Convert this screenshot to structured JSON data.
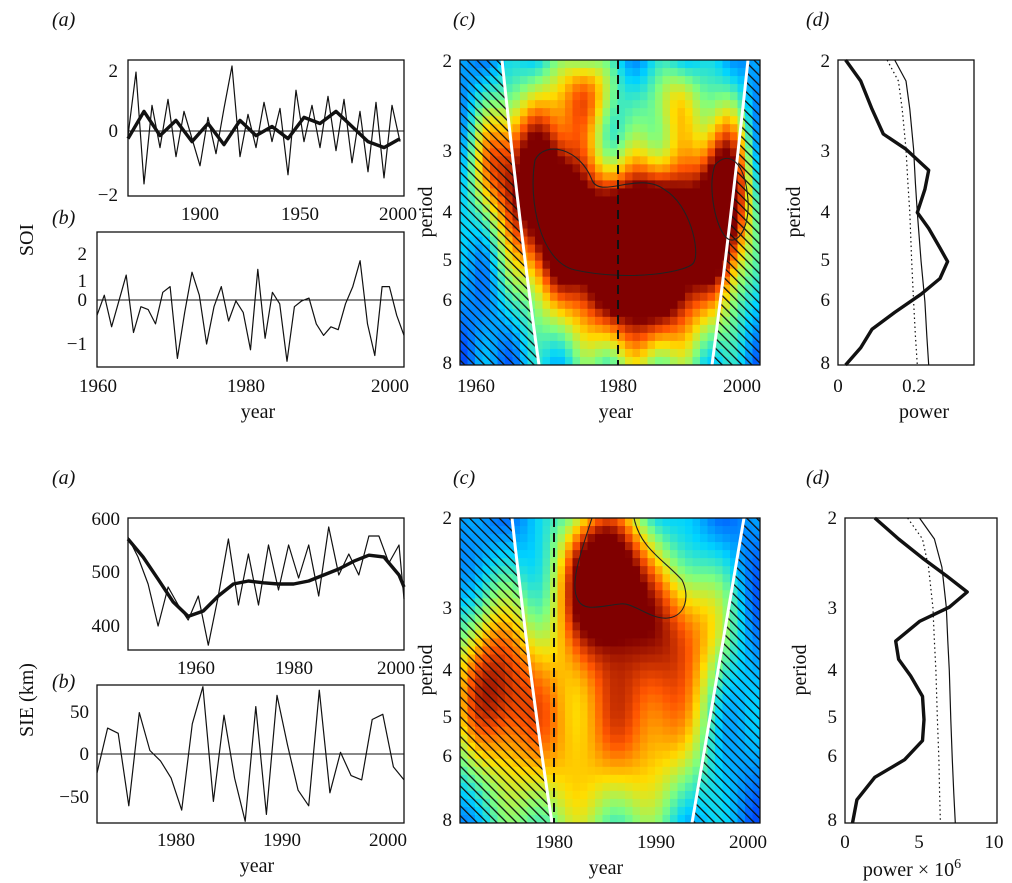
{
  "figure": {
    "top": {
      "row_label": "SOI",
      "a": {
        "panel": "(a)",
        "xticks": [
          "1900",
          "1950",
          "2000"
        ],
        "yticks": [
          "2",
          "0",
          "−2"
        ],
        "xlim": [
          1866,
          2004
        ],
        "ylim": [
          -2.2,
          2.3
        ]
      },
      "b": {
        "panel": "(b)",
        "xticks": [
          "1960",
          "1980",
          "2000"
        ],
        "yticks": [
          "2",
          "1",
          "0",
          "−1"
        ],
        "xlabel": "year",
        "xlim": [
          1960,
          2002
        ],
        "ylim": [
          -1.7,
          3.0
        ]
      },
      "c": {
        "panel": "(c)",
        "xticks": [
          "1960",
          "1980",
          "2000"
        ],
        "yticks": [
          "2",
          "3",
          "4",
          "5",
          "6",
          "8"
        ],
        "xlabel": "year",
        "ylabel": "period",
        "dashed_year": 1980
      },
      "d": {
        "panel": "(d)",
        "xticks": [
          "0",
          "0.2"
        ],
        "yticks": [
          "2",
          "3",
          "4",
          "5",
          "6",
          "8"
        ],
        "xlabel": "power",
        "ylabel": "period"
      }
    },
    "bottom": {
      "row_label": "SIE (km)",
      "a": {
        "panel": "(a)",
        "xticks": [
          "1960",
          "1980",
          "2000"
        ],
        "yticks": [
          "600",
          "500",
          "400"
        ],
        "xlim": [
          1947,
          2002
        ],
        "ylim": [
          380,
          600
        ]
      },
      "b": {
        "panel": "(b)",
        "xticks": [
          "1980",
          "1990",
          "2000"
        ],
        "yticks": [
          "50",
          "0",
          "−50"
        ],
        "xlabel": "year",
        "xlim": [
          1973,
          2002
        ],
        "ylim": [
          -80,
          80
        ]
      },
      "c": {
        "panel": "(c)",
        "xticks": [
          "1980",
          "1990",
          "2000"
        ],
        "yticks": [
          "2",
          "3",
          "4",
          "5",
          "6",
          "8"
        ],
        "xlabel": "year",
        "ylabel": "period",
        "dashed_year": 1980
      },
      "d": {
        "panel": "(d)",
        "xticks": [
          "0",
          "5",
          "10"
        ],
        "yticks": [
          "2",
          "3",
          "4",
          "5",
          "6",
          "8"
        ],
        "xlabel": "power × 10",
        "xlabel_sup": "6",
        "ylabel": "period"
      }
    }
  },
  "chart_data": [
    {
      "id": "top-a",
      "type": "line",
      "x_range": [
        1866,
        2004
      ],
      "y_range": [
        -2.2,
        2.3
      ],
      "series": [
        {
          "style": "thin",
          "x": [
            1866,
            1870,
            1874,
            1878,
            1882,
            1886,
            1890,
            1894,
            1898,
            1902,
            1906,
            1910,
            1914,
            1918,
            1922,
            1926,
            1930,
            1934,
            1938,
            1942,
            1946,
            1950,
            1954,
            1958,
            1962,
            1966,
            1970,
            1974,
            1978,
            1982,
            1986,
            1990,
            1994,
            1998,
            2002
          ],
          "y": [
            -0.2,
            1.9,
            -1.8,
            0.8,
            -0.6,
            1.0,
            -0.9,
            0.6,
            -0.3,
            -1.2,
            0.4,
            -0.8,
            0.7,
            2.1,
            -0.9,
            0.5,
            -0.6,
            0.9,
            -0.4,
            0.7,
            -1.5,
            1.3,
            -0.4,
            0.8,
            -0.6,
            1.1,
            -0.7,
            1.0,
            -1.1,
            0.6,
            -1.4,
            0.9,
            -1.6,
            0.8,
            -0.4
          ]
        },
        {
          "style": "thick",
          "x": [
            1866,
            1874,
            1882,
            1890,
            1898,
            1906,
            1914,
            1922,
            1930,
            1938,
            1946,
            1954,
            1962,
            1970,
            1978,
            1986,
            1994,
            2002
          ],
          "y": [
            -0.3,
            0.6,
            -0.2,
            0.3,
            -0.4,
            0.2,
            -0.5,
            0.3,
            -0.2,
            0.1,
            -0.3,
            0.4,
            0.2,
            0.6,
            0.1,
            -0.4,
            -0.6,
            -0.3
          ]
        }
      ]
    },
    {
      "id": "top-b",
      "type": "line",
      "x_range": [
        1960,
        2002
      ],
      "y_range": [
        -1.7,
        3.0
      ],
      "series": [
        {
          "style": "thin",
          "x": [
            1960,
            1961,
            1962,
            1963,
            1964,
            1965,
            1966,
            1967,
            1968,
            1969,
            1970,
            1971,
            1972,
            1973,
            1974,
            1975,
            1976,
            1977,
            1978,
            1979,
            1980,
            1981,
            1982,
            1983,
            1984,
            1985,
            1986,
            1987,
            1988,
            1989,
            1990,
            1991,
            1992,
            1993,
            1994,
            1995,
            1996,
            1997,
            1998,
            1999,
            2000,
            2001,
            2002
          ],
          "y": [
            0.1,
            0.8,
            -0.3,
            0.6,
            1.5,
            -0.5,
            0.4,
            0.3,
            -0.2,
            0.9,
            1.1,
            -1.4,
            0.2,
            1.6,
            0.8,
            -0.9,
            0.4,
            1.1,
            -0.1,
            0.6,
            0.2,
            -1.1,
            1.7,
            -0.7,
            0.9,
            0.5,
            -1.5,
            0.4,
            0.6,
            0.7,
            -0.2,
            -0.6,
            -0.3,
            -0.4,
            0.5,
            1.1,
            2.0,
            -0.2,
            -1.3,
            1.1,
            1.1,
            0.1,
            -0.6
          ]
        }
      ]
    },
    {
      "id": "top-d",
      "type": "line",
      "y_scale": "log2",
      "x_range": [
        0,
        0.36
      ],
      "y_range": [
        2,
        8
      ],
      "series": [
        {
          "style": "thick",
          "y": [
            2,
            2.2,
            2.5,
            2.8,
            3.0,
            3.3,
            3.6,
            4.0,
            4.3,
            4.7,
            5.0,
            5.4,
            5.8,
            6.3,
            6.8,
            7.4,
            8
          ],
          "x": [
            0.02,
            0.06,
            0.09,
            0.12,
            0.18,
            0.24,
            0.23,
            0.21,
            0.24,
            0.27,
            0.29,
            0.27,
            0.22,
            0.15,
            0.09,
            0.06,
            0.02
          ]
        },
        {
          "style": "thin",
          "y": [
            2,
            2.2,
            2.5,
            3.0,
            3.5,
            4,
            5,
            6,
            7,
            8
          ],
          "x": [
            0.15,
            0.18,
            0.19,
            0.2,
            0.205,
            0.21,
            0.22,
            0.23,
            0.235,
            0.24
          ]
        },
        {
          "style": "dotted",
          "y": [
            2,
            2.2,
            2.5,
            3.0,
            3.5,
            4,
            5,
            6,
            7,
            8
          ],
          "x": [
            0.13,
            0.16,
            0.17,
            0.18,
            0.185,
            0.19,
            0.195,
            0.2,
            0.205,
            0.21
          ]
        }
      ]
    },
    {
      "id": "bottom-a",
      "type": "line",
      "x_range": [
        1947,
        2002
      ],
      "y_range": [
        380,
        600
      ],
      "series": [
        {
          "style": "thin",
          "x": [
            1947,
            1949,
            1951,
            1953,
            1955,
            1957,
            1959,
            1961,
            1963,
            1965,
            1967,
            1969,
            1971,
            1973,
            1975,
            1977,
            1979,
            1981,
            1983,
            1985,
            1987,
            1989,
            1991,
            1993,
            1995,
            1997,
            1999,
            2001,
            2002
          ],
          "y": [
            568,
            535,
            490,
            420,
            485,
            455,
            430,
            470,
            388,
            470,
            565,
            455,
            540,
            455,
            555,
            480,
            555,
            500,
            555,
            470,
            585,
            505,
            540,
            505,
            570,
            570,
            525,
            555,
            465
          ]
        },
        {
          "style": "thick",
          "x": [
            1947,
            1950,
            1953,
            1956,
            1959,
            1962,
            1965,
            1968,
            1971,
            1974,
            1977,
            1980,
            1983,
            1986,
            1989,
            1992,
            1995,
            1998,
            2001,
            2002
          ],
          "y": [
            565,
            535,
            498,
            460,
            436,
            445,
            470,
            490,
            495,
            492,
            490,
            490,
            495,
            505,
            515,
            528,
            538,
            535,
            505,
            485
          ]
        }
      ]
    },
    {
      "id": "bottom-b",
      "type": "line",
      "x_range": [
        1973,
        2002
      ],
      "y_range": [
        -80,
        80
      ],
      "series": [
        {
          "style": "thin",
          "x": [
            1973,
            1974,
            1975,
            1976,
            1977,
            1978,
            1979,
            1980,
            1981,
            1982,
            1983,
            1984,
            1985,
            1986,
            1987,
            1988,
            1989,
            1990,
            1991,
            1992,
            1993,
            1994,
            1995,
            1996,
            1997,
            1998,
            1999,
            2000,
            2001,
            2002
          ],
          "y": [
            -22,
            30,
            24,
            -60,
            48,
            4,
            -8,
            -28,
            -65,
            35,
            78,
            -55,
            45,
            -28,
            -78,
            55,
            -70,
            68,
            10,
            -42,
            -60,
            74,
            -45,
            2,
            -25,
            -30,
            40,
            46,
            -15,
            -30
          ]
        }
      ]
    },
    {
      "id": "bottom-d",
      "type": "line",
      "y_scale": "log2",
      "x_range": [
        0,
        10.2
      ],
      "y_range": [
        2,
        8
      ],
      "series": [
        {
          "style": "thick",
          "y": [
            2,
            2.2,
            2.4,
            2.6,
            2.8,
            3.0,
            3.2,
            3.5,
            3.8,
            4.1,
            4.5,
            5.0,
            5.5,
            6.0,
            6.5,
            7.2,
            8
          ],
          "x": [
            2.0,
            3.6,
            5.2,
            6.8,
            8.2,
            7.0,
            5.0,
            3.4,
            3.6,
            4.4,
            5.2,
            5.3,
            5.2,
            4.0,
            2.0,
            0.8,
            0.5
          ]
        },
        {
          "style": "thin",
          "y": [
            2,
            2.2,
            2.5,
            3.0,
            3.5,
            4,
            5,
            6,
            7,
            8
          ],
          "x": [
            5.0,
            6.0,
            6.5,
            6.8,
            6.9,
            7.0,
            7.1,
            7.2,
            7.3,
            7.4
          ]
        },
        {
          "style": "dotted",
          "y": [
            2,
            2.2,
            2.5,
            3.0,
            3.5,
            4,
            5,
            6,
            7,
            8
          ],
          "x": [
            4.2,
            5.2,
            5.6,
            5.9,
            6.0,
            6.1,
            6.2,
            6.3,
            6.35,
            6.4
          ]
        }
      ]
    },
    {
      "id": "top-c",
      "type": "heatmap",
      "x_range": [
        1960,
        2002
      ],
      "y_scale": "log2",
      "y_range": [
        2,
        8
      ],
      "colorscale": [
        "#00007f",
        "#0050ff",
        "#00d4ff",
        "#7fff7f",
        "#ffdd00",
        "#ff5500",
        "#800000"
      ],
      "blobs": [
        {
          "x": 1972,
          "p": 3.6,
          "sx": 4,
          "sy": 0.45,
          "v": 0.9
        },
        {
          "x": 1982,
          "p": 4.7,
          "sx": 6,
          "sy": 0.35,
          "v": 1.0
        },
        {
          "x": 1990,
          "p": 4.5,
          "sx": 5,
          "sy": 0.4,
          "v": 0.75
        },
        {
          "x": 1997,
          "p": 3.7,
          "sx": 2.5,
          "sy": 0.4,
          "v": 0.85
        },
        {
          "x": 1965,
          "p": 3.2,
          "sx": 3,
          "sy": 0.3,
          "v": 0.45
        },
        {
          "x": 1978,
          "p": 2.3,
          "sx": 3,
          "sy": 0.2,
          "v": 0.45
        },
        {
          "x": 1990,
          "p": 2.4,
          "sx": 3,
          "sy": 0.2,
          "v": 0.35
        },
        {
          "x": 1985,
          "p": 7.0,
          "sx": 8,
          "sy": 0.3,
          "v": 0.25
        }
      ]
    },
    {
      "id": "bottom-c",
      "type": "heatmap",
      "x_range": [
        1973,
        2002
      ],
      "y_scale": "log2",
      "y_range": [
        2,
        8
      ],
      "colorscale": [
        "#00007f",
        "#0050ff",
        "#00d4ff",
        "#7fff7f",
        "#ffdd00",
        "#ff5500",
        "#800000"
      ],
      "blobs": [
        {
          "x": 1987,
          "p": 2.6,
          "sx": 3,
          "sy": 0.35,
          "v": 1.0
        },
        {
          "x": 1976,
          "p": 4.3,
          "sx": 3,
          "sy": 0.4,
          "v": 0.6
        },
        {
          "x": 1992,
          "p": 4.8,
          "sx": 4,
          "sy": 0.5,
          "v": 0.5
        },
        {
          "x": 1983,
          "p": 5.5,
          "sx": 5,
          "sy": 0.6,
          "v": 0.45
        },
        {
          "x": 1995,
          "p": 3.2,
          "sx": 3,
          "sy": 0.3,
          "v": 0.4
        }
      ]
    }
  ]
}
